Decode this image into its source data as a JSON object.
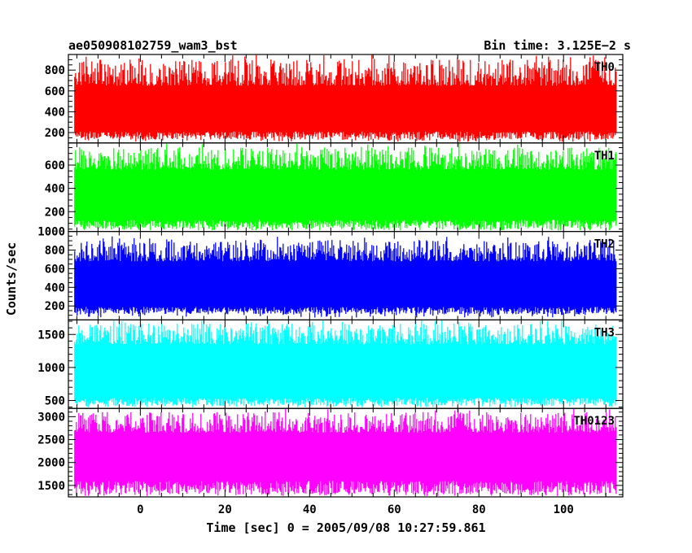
{
  "chart_data": {
    "type": "line",
    "title": "ae050908102759_wam3_bst",
    "subtitle": "Bin time: 3.125E−2 s",
    "xlabel": "Time [sec] 0 = 2005/09/08 10:27:59.861",
    "ylabel": "Counts/sec",
    "xlim": [
      -17,
      114
    ],
    "x_ticks": [
      0,
      20,
      40,
      60,
      80,
      100
    ],
    "x_tick_labels": [
      "0",
      "20",
      "40",
      "60",
      "80",
      "100"
    ],
    "data_x_range": [
      -15.5,
      112.5
    ],
    "panels": [
      {
        "name": "TH0",
        "color": "#ff0000",
        "ylim": [
          100,
          950
        ],
        "yticks": [
          200,
          400,
          600,
          800
        ],
        "ytick_labels": [
          "200",
          "400",
          "600",
          "800"
        ],
        "data_low": [
          130,
          210
        ],
        "data_high": [
          650,
          950
        ]
      },
      {
        "name": "TH1",
        "color": "#00ff00",
        "ylim": [
          30,
          790
        ],
        "yticks": [
          200,
          400,
          600
        ],
        "ytick_labels": [
          "200",
          "400",
          "600"
        ],
        "data_low": [
          50,
          130
        ],
        "data_high": [
          560,
          790
        ]
      },
      {
        "name": "TH2",
        "color": "#0000ff",
        "ylim": [
          50,
          1000
        ],
        "yticks": [
          200,
          400,
          600,
          800,
          1000
        ],
        "ytick_labels": [
          "200",
          "400",
          "600",
          "800",
          "1000"
        ],
        "data_low": [
          110,
          190
        ],
        "data_high": [
          680,
          950
        ]
      },
      {
        "name": "TH3",
        "color": "#00ffff",
        "ylim": [
          380,
          1720
        ],
        "yticks": [
          500,
          1000,
          1500
        ],
        "ytick_labels": [
          "500",
          "1000",
          "1500"
        ],
        "data_low": [
          420,
          540
        ],
        "data_high": [
          1350,
          1720
        ]
      },
      {
        "name": "TH0123",
        "color": "#ff00ff",
        "ylim": [
          1250,
          3180
        ],
        "yticks": [
          1500,
          2000,
          2500,
          3000
        ],
        "ytick_labels": [
          "1500",
          "2000",
          "2500",
          "3000"
        ],
        "data_low": [
          1300,
          1600
        ],
        "data_high": [
          2650,
          3180
        ]
      }
    ]
  }
}
